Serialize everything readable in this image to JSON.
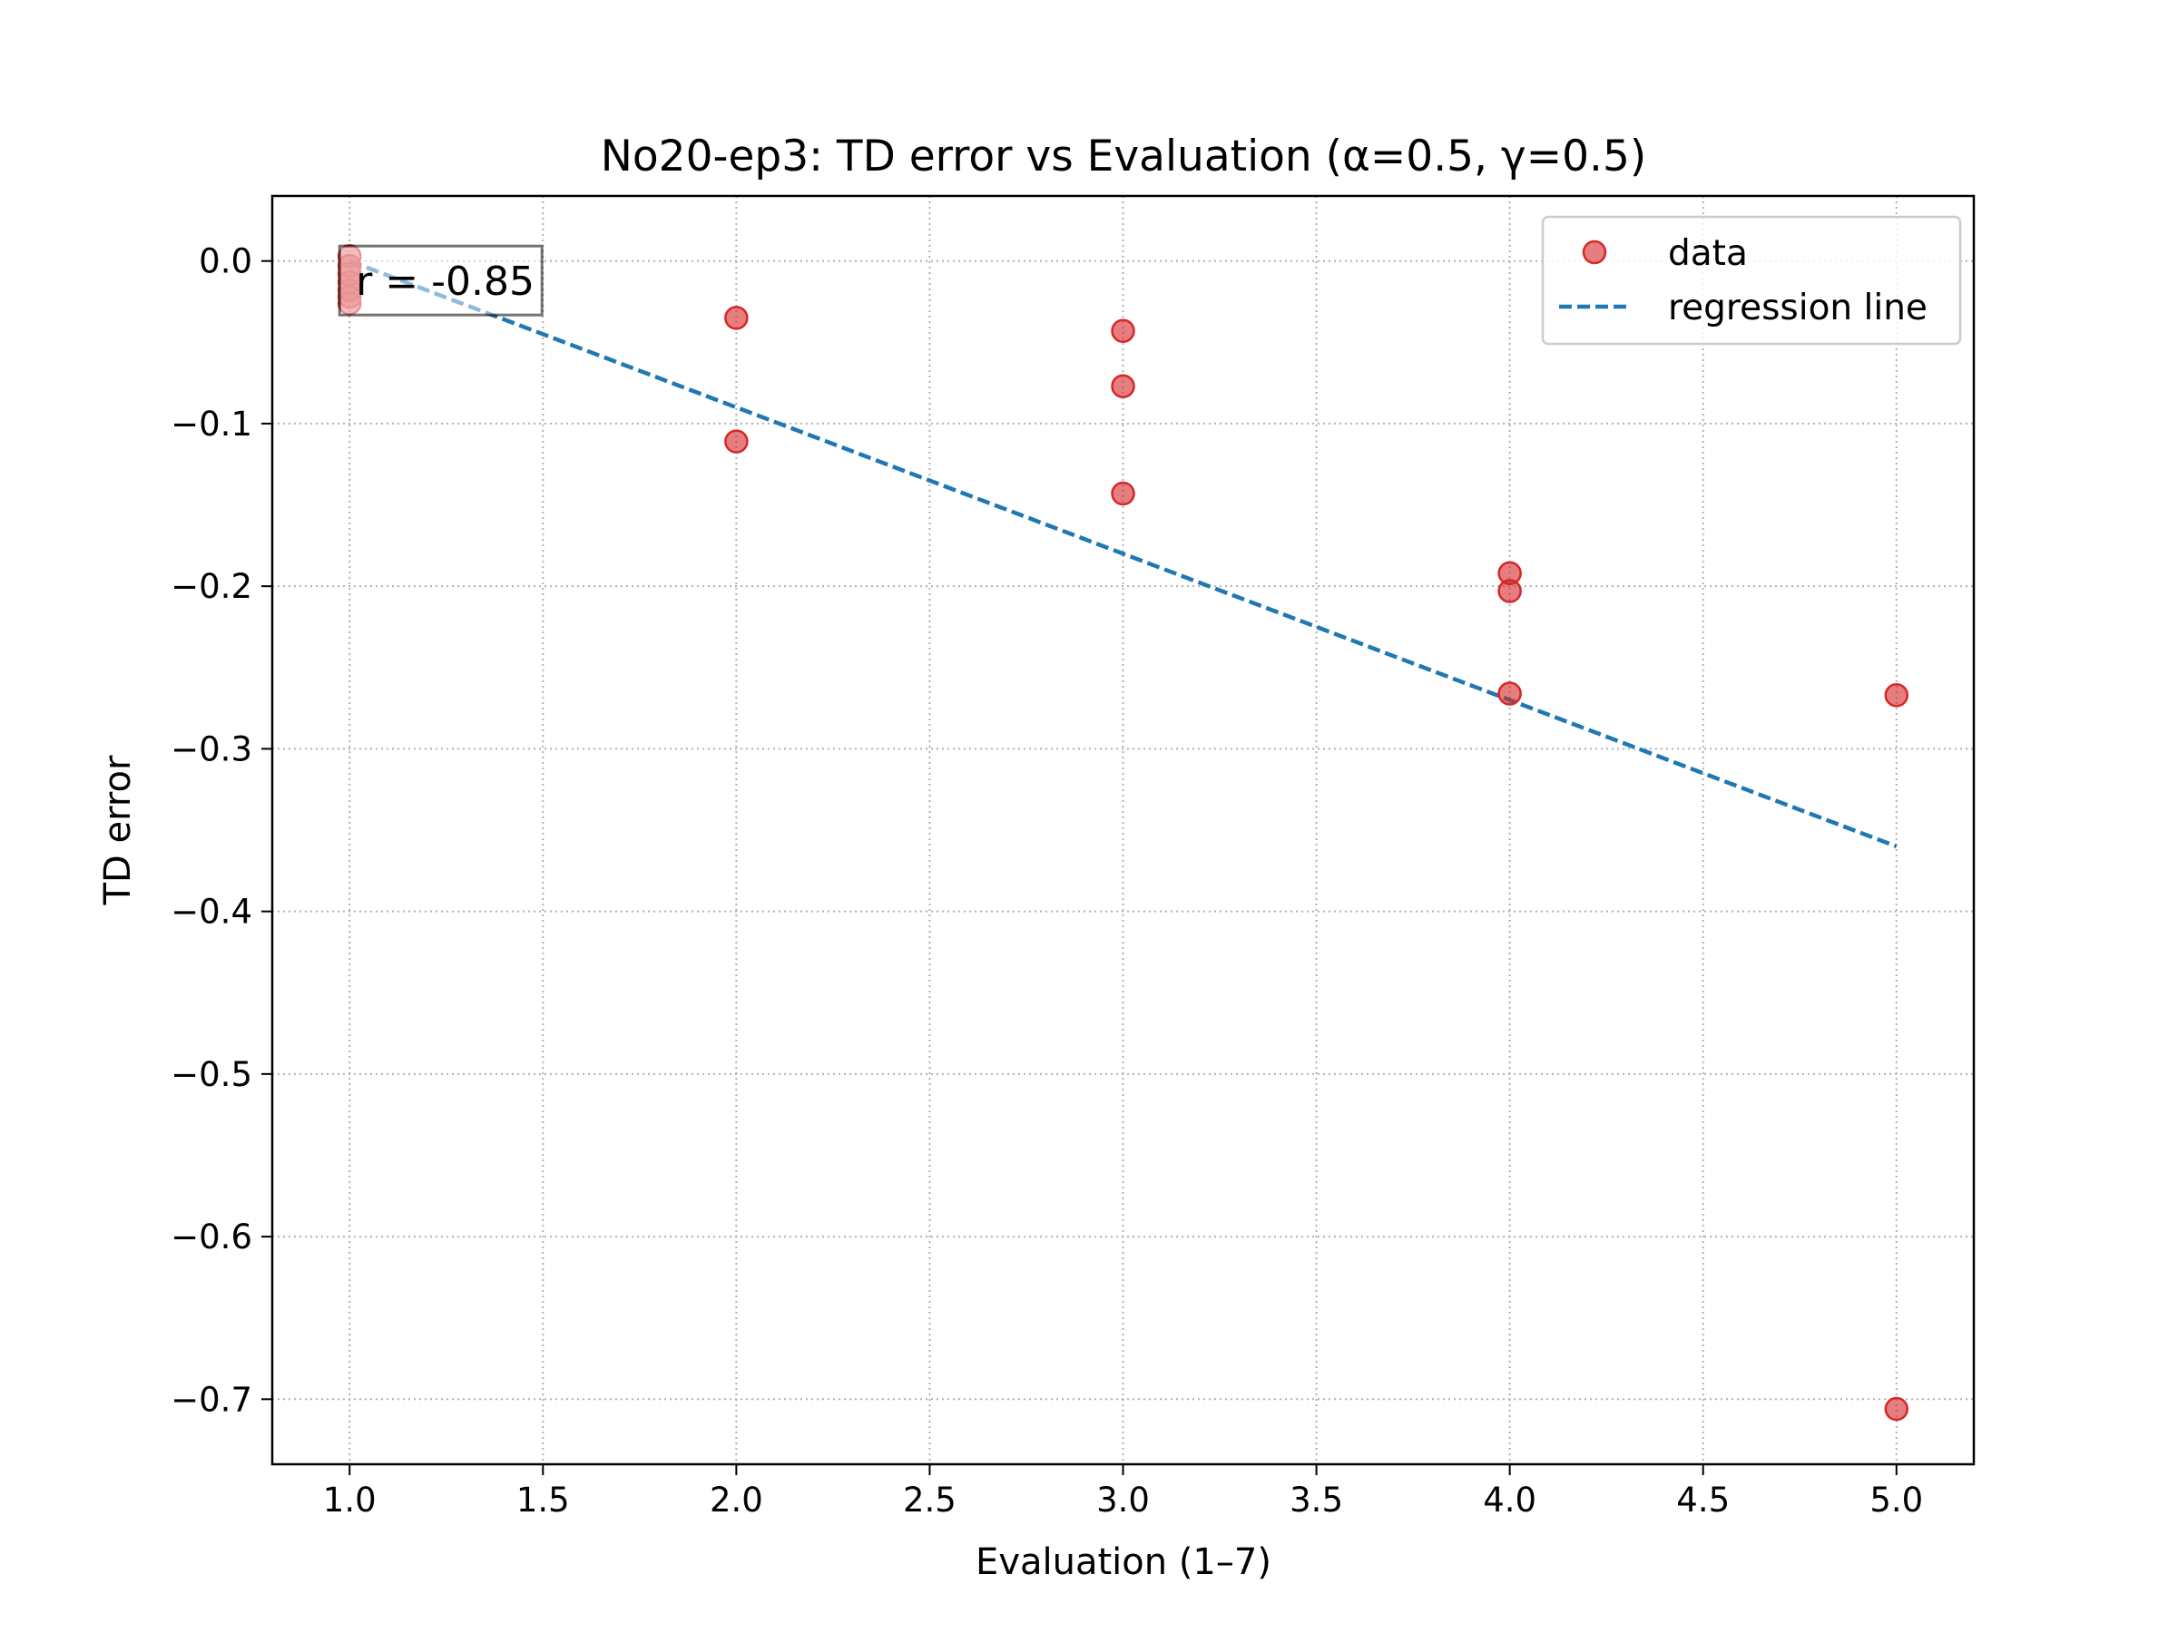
{
  "chart_data": {
    "type": "scatter",
    "title": "No20-ep3: TD error vs Evaluation (α=0.5, γ=0.5)",
    "xlabel": "Evaluation (1–7)",
    "ylabel": "TD error",
    "xlim": [
      0.8,
      5.2
    ],
    "ylim": [
      -0.74,
      0.04
    ],
    "grid": true,
    "x_ticks": [
      1.0,
      1.5,
      2.0,
      2.5,
      3.0,
      3.5,
      4.0,
      4.5,
      5.0
    ],
    "x_tick_labels": [
      "1.0",
      "1.5",
      "2.0",
      "2.5",
      "3.0",
      "3.5",
      "4.0",
      "4.5",
      "5.0"
    ],
    "y_ticks": [
      0.0,
      -0.1,
      -0.2,
      -0.3,
      -0.4,
      -0.5,
      -0.6,
      -0.7
    ],
    "y_tick_labels": [
      "0.0",
      "−0.1",
      "−0.2",
      "−0.3",
      "−0.4",
      "−0.5",
      "−0.6",
      "−0.7"
    ],
    "legend_position": "top-right",
    "legend": [
      "data",
      "regression line"
    ],
    "series": [
      {
        "name": "data",
        "color": "#d62728",
        "points": [
          {
            "x": 1.0,
            "y": 0.003
          },
          {
            "x": 1.0,
            "y": -0.003
          },
          {
            "x": 1.0,
            "y": -0.008
          },
          {
            "x": 1.0,
            "y": -0.013
          },
          {
            "x": 1.0,
            "y": -0.018
          },
          {
            "x": 1.0,
            "y": -0.022
          },
          {
            "x": 1.0,
            "y": -0.026
          },
          {
            "x": 2.0,
            "y": -0.035
          },
          {
            "x": 2.0,
            "y": -0.111
          },
          {
            "x": 3.0,
            "y": -0.043
          },
          {
            "x": 3.0,
            "y": -0.077
          },
          {
            "x": 3.0,
            "y": -0.143
          },
          {
            "x": 4.0,
            "y": -0.192
          },
          {
            "x": 4.0,
            "y": -0.203
          },
          {
            "x": 4.0,
            "y": -0.266
          },
          {
            "x": 5.0,
            "y": -0.267
          },
          {
            "x": 5.0,
            "y": -0.706
          }
        ]
      },
      {
        "name": "regression line",
        "color": "#1f77b4",
        "style": "dashed",
        "points": [
          {
            "x": 1.0,
            "y": 0.0
          },
          {
            "x": 5.0,
            "y": -0.36
          }
        ]
      }
    ],
    "annotation": {
      "text": "r = -0.85",
      "x": 1.0,
      "y": -0.012
    }
  }
}
